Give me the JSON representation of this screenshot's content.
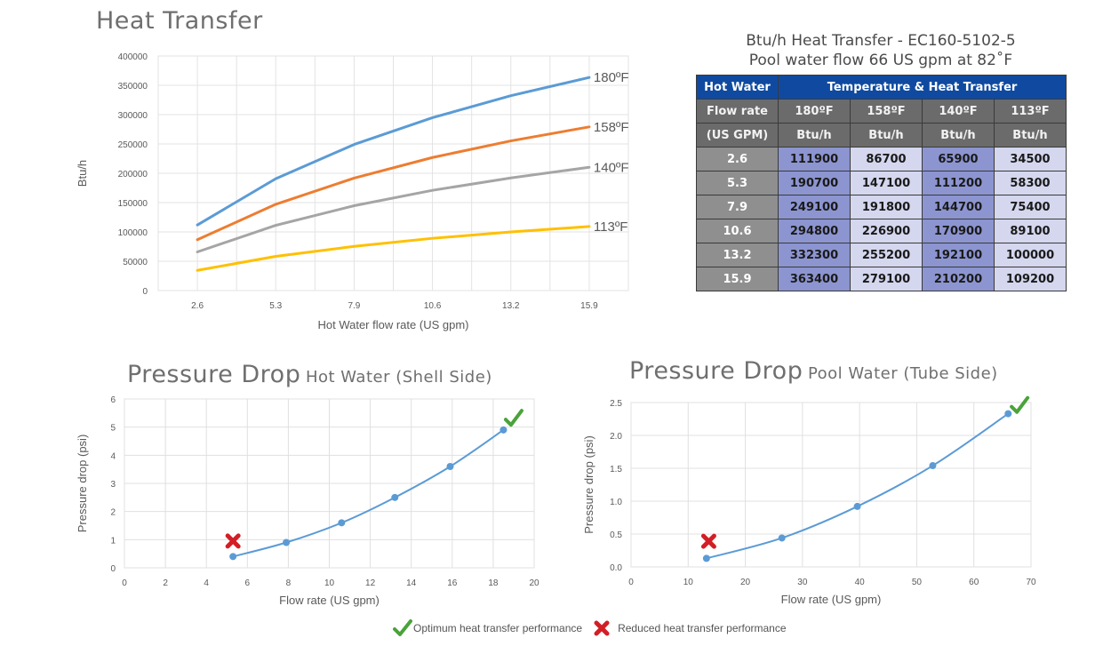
{
  "page": {
    "heat_title": "Heat Transfer",
    "pd_hot_title_main": "Pressure Drop",
    "pd_hot_title_sub": "Hot Water (Shell Side)",
    "pd_pool_title_main": "Pressure Drop",
    "pd_pool_title_sub": "Pool Water (Tube Side)"
  },
  "table": {
    "title_line1": "Btu/h Heat Transfer - EC160-5102-5",
    "title_line2": "Pool water flow 66 US gpm at 82˚F",
    "header_left": "Hot Water",
    "header_right": "Temperature & Heat Transfer",
    "sub_label1": "Flow rate",
    "sub_label2": "(US GPM)",
    "temps": [
      "180ºF",
      "158ºF",
      "140ºF",
      "113ºF"
    ],
    "units": [
      "Btu/h",
      "Btu/h",
      "Btu/h",
      "Btu/h"
    ],
    "rows": [
      {
        "flow": "2.6",
        "values": [
          "111900",
          "86700",
          "65900",
          "34500"
        ]
      },
      {
        "flow": "5.3",
        "values": [
          "190700",
          "147100",
          "111200",
          "58300"
        ]
      },
      {
        "flow": "7.9",
        "values": [
          "249100",
          "191800",
          "144700",
          "75400"
        ]
      },
      {
        "flow": "10.6",
        "values": [
          "294800",
          "226900",
          "170900",
          "89100"
        ]
      },
      {
        "flow": "13.2",
        "values": [
          "332300",
          "255200",
          "192100",
          "100000"
        ]
      },
      {
        "flow": "15.9",
        "values": [
          "363400",
          "279100",
          "210200",
          "109200"
        ]
      }
    ]
  },
  "legend": {
    "optimum": "Optimum heat transfer performance",
    "reduced": "Reduced heat transfer performance",
    "optimum_color": "#4aa33a",
    "reduced_color": "#d21f26"
  },
  "chart_data": [
    {
      "type": "line",
      "title": "Heat Transfer",
      "xlabel": "Hot Water flow rate (US gpm)",
      "ylabel": "Btu/h",
      "categories": [
        "2.6",
        "5.3",
        "7.9",
        "10.6",
        "13.2",
        "15.9"
      ],
      "ylim": [
        0,
        400000
      ],
      "yticks": [
        0,
        50000,
        100000,
        150000,
        200000,
        250000,
        300000,
        350000,
        400000
      ],
      "ytick_labels": [
        "0",
        "50000",
        "100000",
        "150000",
        "200000",
        "250000",
        "300000",
        "350000",
        "400000"
      ],
      "grid": true,
      "legend": "inline-right",
      "series": [
        {
          "name": "180ºF",
          "color": "#5b9bd5",
          "values": [
            111900,
            190700,
            249100,
            294800,
            332300,
            363400
          ]
        },
        {
          "name": "158ºF",
          "color": "#ed7d31",
          "values": [
            86700,
            147100,
            191800,
            226900,
            255200,
            279100
          ]
        },
        {
          "name": "140ºF",
          "color": "#a5a5a5",
          "values": [
            65900,
            111200,
            144700,
            170900,
            192100,
            210200
          ]
        },
        {
          "name": "113ºF",
          "color": "#ffc000",
          "values": [
            34500,
            58300,
            75400,
            89100,
            100000,
            109200
          ]
        }
      ]
    },
    {
      "type": "scatter",
      "title": "Pressure Drop Hot Water (Shell Side)",
      "xlabel": "Flow rate (US gpm)",
      "ylabel": "Pressure drop (psi)",
      "xlim": [
        0,
        20
      ],
      "xticks": [
        0,
        2,
        4,
        6,
        8,
        10,
        12,
        14,
        16,
        18,
        20
      ],
      "ylim": [
        0,
        6
      ],
      "yticks": [
        0,
        1,
        2,
        3,
        4,
        5,
        6
      ],
      "ytick_labels": [
        "0",
        "1",
        "2",
        "3",
        "4",
        "5",
        "6"
      ],
      "grid": true,
      "series": [
        {
          "name": "Pressure drop",
          "color": "#5b9bd5",
          "x": [
            5.3,
            7.9,
            10.6,
            13.2,
            15.9,
            18.5
          ],
          "y": [
            0.4,
            0.9,
            1.6,
            2.5,
            3.6,
            4.9
          ]
        }
      ],
      "annotations": [
        {
          "type": "reduced",
          "x": 5.3,
          "y": 0.95
        },
        {
          "type": "optimum",
          "x": 19.0,
          "y": 5.3
        }
      ]
    },
    {
      "type": "scatter",
      "title": "Pressure Drop Pool Water (Tube Side)",
      "xlabel": "Flow rate (US gpm)",
      "ylabel": "Pressure drop (psi)",
      "xlim": [
        0,
        70
      ],
      "xticks": [
        0,
        10,
        20,
        30,
        40,
        50,
        60,
        70
      ],
      "ylim": [
        0,
        2.5
      ],
      "yticks": [
        0,
        0.5,
        1.0,
        1.5,
        2.0,
        2.5
      ],
      "ytick_labels": [
        "0.0",
        "0.5",
        "1.0",
        "1.5",
        "2.0",
        "2.5"
      ],
      "grid": true,
      "series": [
        {
          "name": "Pressure drop",
          "color": "#5b9bd5",
          "x": [
            13.2,
            26.4,
            39.6,
            52.8,
            66.0
          ],
          "y": [
            0.13,
            0.44,
            0.92,
            1.54,
            2.33
          ]
        }
      ],
      "annotations": [
        {
          "type": "reduced",
          "x": 13.6,
          "y": 0.39
        },
        {
          "type": "optimum",
          "x": 68.0,
          "y": 2.45
        }
      ]
    }
  ]
}
